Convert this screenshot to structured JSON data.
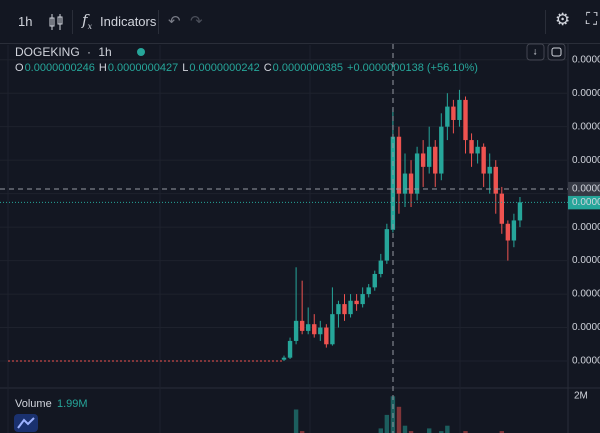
{
  "toolbar": {
    "interval": "1h",
    "indicators": "Indicators"
  },
  "legend": {
    "symbol": "DOGEKING",
    "interval": "1h",
    "ohlc": [
      {
        "key": "O",
        "value": "0.0000000246"
      },
      {
        "key": "H",
        "value": "0.0000000427"
      },
      {
        "key": "L",
        "value": "0.0000000242"
      },
      {
        "key": "C",
        "value": "0.0000000385"
      }
    ],
    "change": "+0.0000000138 (+56.10%)"
  },
  "chart_data": {
    "type": "candlestick",
    "up_color": "#26a69a",
    "down_color": "#ef5350",
    "ylim": [
      9.7e-10,
      5.22e-08
    ],
    "yticks": [
      {
        "value": 5e-09,
        "label": "0.0000"
      },
      {
        "value": 1e-08,
        "label": "0.0000"
      },
      {
        "value": 1.5e-08,
        "label": "0.0000"
      },
      {
        "value": 2e-08,
        "label": "0.0000"
      },
      {
        "value": 2.5e-08,
        "label": "0.0000"
      },
      {
        "value": 3e-08,
        "label": "0.0000"
      },
      {
        "value": 3.5e-08,
        "label": "0.0000"
      },
      {
        "value": 4e-08,
        "label": "0.0000"
      },
      {
        "value": 4.5e-08,
        "label": "0.0000"
      },
      {
        "value": 5e-08,
        "label": "0.0000"
      }
    ],
    "grid": true,
    "flat_price": 5e-09,
    "crosshair": {
      "value": 3.07e-08,
      "label": "0.0000"
    },
    "last_price_label": "0.0000",
    "open": [
      5.2e-09,
      5.5e-09,
      8e-09,
      1.1e-08,
      9.5e-09,
      1.05e-08,
      9e-09,
      1e-08,
      7.5e-09,
      1.2e-08,
      1.35e-08,
      1.2e-08,
      1.4e-08,
      1.35e-08,
      1.5e-08,
      1.6e-08,
      1.8e-08,
      2e-08,
      2.46e-08,
      3.85e-08,
      3e-08,
      3.3e-08,
      3e-08,
      3.6e-08,
      3.4e-08,
      3.7e-08,
      3.3e-08,
      4e-08,
      4.3e-08,
      4.1e-08,
      4.4e-08,
      3.8e-08,
      3.6e-08,
      3.7e-08,
      3.3e-08,
      3.4e-08,
      3e-08,
      2.55e-08,
      2.3e-08,
      2.6e-08
    ],
    "high": [
      5.8e-09,
      8.5e-09,
      1.9e-08,
      1.7e-08,
      1.3e-08,
      1.2e-08,
      1.1e-08,
      1.05e-08,
      1.6e-08,
      1.4e-08,
      1.5e-08,
      1.5e-08,
      1.5e-08,
      1.6e-08,
      1.65e-08,
      1.85e-08,
      2.1e-08,
      2.55e-08,
      4.27e-08,
      4e-08,
      3.6e-08,
      3.5e-08,
      3.7e-08,
      3.8e-08,
      4e-08,
      3.8e-08,
      4.2e-08,
      4.5e-08,
      4.4e-08,
      4.55e-08,
      4.45e-08,
      3.9e-08,
      3.8e-08,
      3.75e-08,
      3.6e-08,
      3.5e-08,
      3.1e-08,
      2.6e-08,
      2.7e-08,
      2.95e-08
    ],
    "low": [
      5e-09,
      5.3e-09,
      7.5e-09,
      9e-09,
      9e-09,
      8.5e-09,
      8e-09,
      7e-09,
      7.3e-09,
      1e-08,
      1.1e-08,
      1.15e-08,
      1.25e-08,
      1.3e-08,
      1.45e-08,
      1.55e-08,
      1.75e-08,
      1.95e-08,
      2.42e-08,
      2.7e-08,
      2.8e-08,
      2.8e-08,
      2.9e-08,
      3.1e-08,
      3.3e-08,
      3.1e-08,
      3.2e-08,
      3.8e-08,
      3.9e-08,
      4e-08,
      3.6e-08,
      3.4e-08,
      3.45e-08,
      3.1e-08,
      3e-08,
      2.7e-08,
      2.4e-08,
      2e-08,
      2.2e-08,
      2.5e-08
    ],
    "close": [
      5.5e-09,
      8e-09,
      1.1e-08,
      9.5e-09,
      1.05e-08,
      9e-09,
      1e-08,
      7.5e-09,
      1.2e-08,
      1.35e-08,
      1.2e-08,
      1.4e-08,
      1.35e-08,
      1.5e-08,
      1.6e-08,
      1.8e-08,
      2e-08,
      2.47e-08,
      3.85e-08,
      3e-08,
      3.3e-08,
      3e-08,
      3.6e-08,
      3.4e-08,
      3.7e-08,
      3.3e-08,
      4e-08,
      4.3e-08,
      4.1e-08,
      4.4e-08,
      3.8e-08,
      3.6e-08,
      3.7e-08,
      3.3e-08,
      3.4e-08,
      3e-08,
      2.55e-08,
      2.3e-08,
      2.6e-08,
      2.87e-08
    ],
    "volume": {
      "label": "Volume",
      "value_label": "1.99M",
      "values": [
        200000,
        500000,
        1500000,
        700000,
        400000,
        300000,
        300000,
        400000,
        600000,
        400000,
        300000,
        300000,
        300000,
        400000,
        500000,
        600000,
        800000,
        1300000,
        1990000,
        1600000,
        900000,
        700000,
        600000,
        500000,
        800000,
        600000,
        700000,
        900000,
        600000,
        500000,
        700000,
        500000,
        400000,
        400000,
        500000,
        600000,
        700000,
        600000,
        300000,
        300000
      ],
      "ylim": [
        0,
        2200000
      ],
      "yticks": [
        {
          "value": 2000000,
          "label": "2M"
        }
      ]
    }
  }
}
